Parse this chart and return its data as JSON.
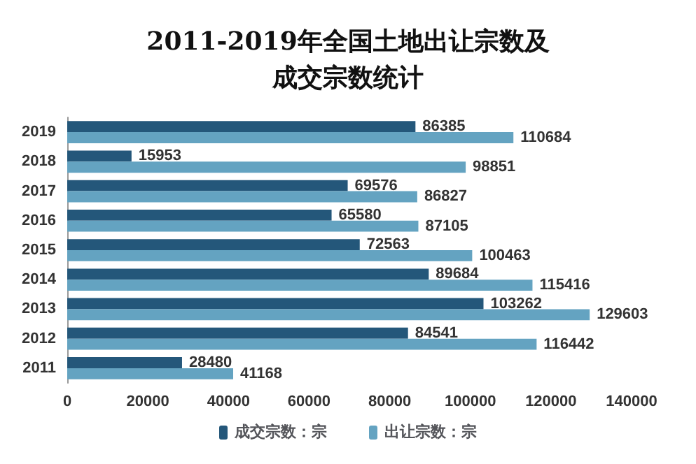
{
  "chart_data": {
    "type": "bar",
    "orientation": "horizontal",
    "title": "2011-2019年全国土地出让宗数及成交宗数统计",
    "categories": [
      "2019",
      "2018",
      "2017",
      "2016",
      "2015",
      "2014",
      "2013",
      "2012",
      "2011"
    ],
    "series": [
      {
        "name": "成交宗数：宗",
        "color": "#24577a",
        "values": [
          86385,
          15953,
          69576,
          65580,
          72563,
          89684,
          103262,
          84541,
          28480
        ]
      },
      {
        "name": "出让宗数：宗",
        "color": "#64a3c1",
        "values": [
          110684,
          98851,
          86827,
          87105,
          100463,
          115416,
          129603,
          116442,
          41168
        ]
      }
    ],
    "xlim": [
      0,
      140000
    ],
    "xticks": [
      0,
      20000,
      40000,
      60000,
      80000,
      100000,
      120000,
      140000
    ],
    "data_labels": true,
    "grid": false,
    "legend": "bottom"
  }
}
